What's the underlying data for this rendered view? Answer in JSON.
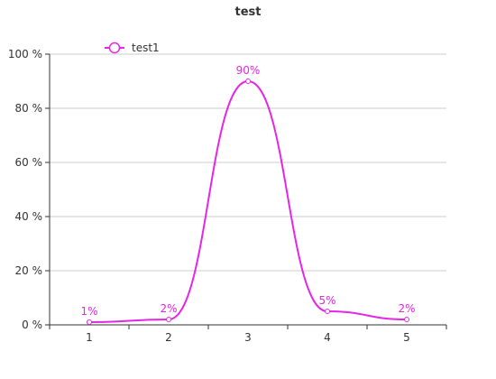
{
  "chart_data": {
    "type": "line",
    "title": "test",
    "xlabel": "",
    "ylabel": "",
    "categories": [
      "1",
      "2",
      "3",
      "4",
      "5"
    ],
    "series": [
      {
        "name": "test1",
        "values": [
          1,
          2,
          90,
          5,
          2
        ],
        "labels": [
          "1%",
          "2%",
          "90%",
          "5%",
          "2%"
        ],
        "color": "#e626e6",
        "smooth": true,
        "marker": "circle"
      }
    ],
    "ylim": [
      0,
      100
    ],
    "yticks": [
      0,
      20,
      40,
      60,
      80,
      100
    ],
    "ytick_labels": [
      "0 %",
      "20 %",
      "40 %",
      "60 %",
      "80 %",
      "100 %"
    ],
    "grid": true,
    "legend_position": "top-left"
  },
  "colors": {
    "axis": "#333333",
    "grid": "#cccccc",
    "series": "#e626e6"
  }
}
